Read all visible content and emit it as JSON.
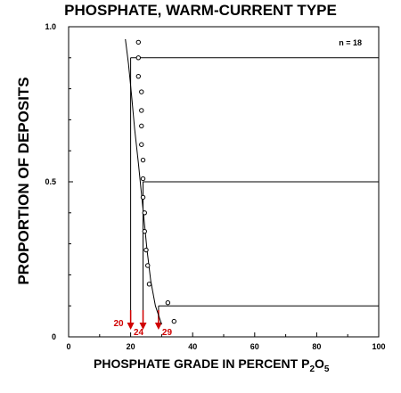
{
  "chart_data": {
    "type": "scatter",
    "title": "PHOSPHATE, WARM-CURRENT TYPE",
    "xlabel_main": "PHOSPHATE GRADE IN PERCENT P",
    "xlabel_sub1": "2",
    "xlabel_mid": "O",
    "xlabel_sub2": "5",
    "ylabel": "PROPORTION OF DEPOSITS",
    "xlim": [
      0,
      100
    ],
    "ylim": [
      0,
      1.0
    ],
    "x_ticks": [
      0,
      20,
      40,
      60,
      80,
      100
    ],
    "y_ticks": [
      0,
      0.5,
      1.0
    ],
    "y_tick_labels": [
      "0",
      "0.5",
      "1.0"
    ],
    "annotation": "n = 18",
    "points": [
      {
        "x": 22.5,
        "y": 0.95
      },
      {
        "x": 22.5,
        "y": 0.9
      },
      {
        "x": 22.5,
        "y": 0.84
      },
      {
        "x": 23.5,
        "y": 0.79
      },
      {
        "x": 23.5,
        "y": 0.73
      },
      {
        "x": 23.5,
        "y": 0.68
      },
      {
        "x": 23.5,
        "y": 0.62
      },
      {
        "x": 24.0,
        "y": 0.57
      },
      {
        "x": 24.0,
        "y": 0.51
      },
      {
        "x": 24.0,
        "y": 0.45
      },
      {
        "x": 24.5,
        "y": 0.4
      },
      {
        "x": 24.5,
        "y": 0.34
      },
      {
        "x": 25.0,
        "y": 0.28
      },
      {
        "x": 25.5,
        "y": 0.23
      },
      {
        "x": 26.0,
        "y": 0.17
      },
      {
        "x": 32.0,
        "y": 0.11
      },
      {
        "x": 34.0,
        "y": 0.05
      }
    ],
    "fitted_curve": [
      {
        "x": 18.3,
        "y": 0.96
      },
      {
        "x": 19.3,
        "y": 0.88
      },
      {
        "x": 20.3,
        "y": 0.78
      },
      {
        "x": 21.3,
        "y": 0.67
      },
      {
        "x": 22.5,
        "y": 0.56
      },
      {
        "x": 23.5,
        "y": 0.46
      },
      {
        "x": 24.3,
        "y": 0.38
      },
      {
        "x": 25.3,
        "y": 0.28
      },
      {
        "x": 26.5,
        "y": 0.18
      },
      {
        "x": 28.0,
        "y": 0.1
      },
      {
        "x": 30.0,
        "y": 0.04
      }
    ],
    "percentile_lines": [
      {
        "y": 0.9,
        "x": 20,
        "label": "20"
      },
      {
        "y": 0.5,
        "x": 24,
        "label": "24"
      },
      {
        "y": 0.1,
        "x": 29,
        "label": "29"
      }
    ]
  }
}
